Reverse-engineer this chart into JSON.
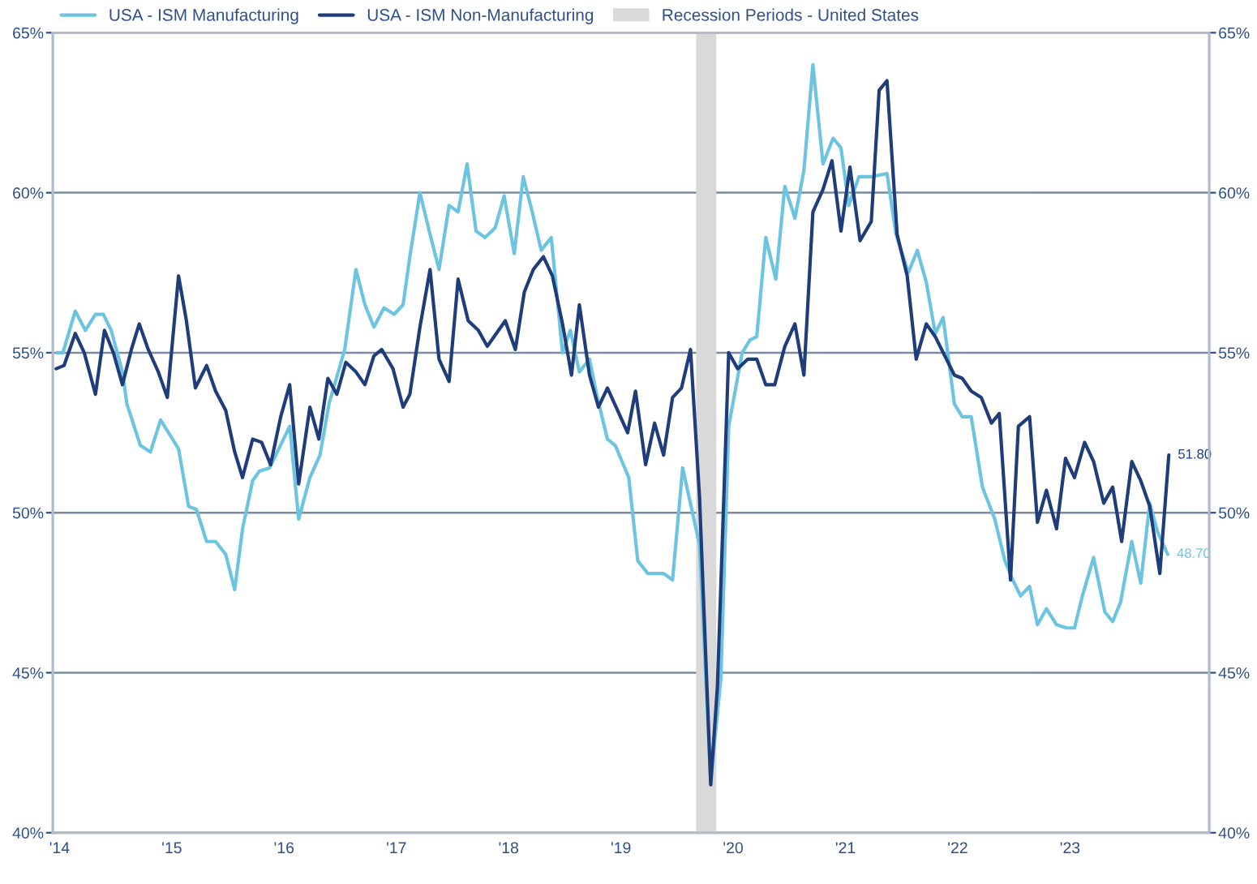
{
  "chart_data": {
    "type": "line",
    "xlim": [
      2013.94,
      2024.24
    ],
    "xticks": [
      {
        "value": 2014,
        "label": "'14"
      },
      {
        "value": 2015,
        "label": "'15"
      },
      {
        "value": 2016,
        "label": "'16"
      },
      {
        "value": 2017,
        "label": "'17"
      },
      {
        "value": 2018,
        "label": "'18"
      },
      {
        "value": 2019,
        "label": "'19"
      },
      {
        "value": 2020,
        "label": "'20"
      },
      {
        "value": 2021,
        "label": "'21"
      },
      {
        "value": 2022,
        "label": "'22"
      },
      {
        "value": 2023,
        "label": "'23"
      }
    ],
    "ylim": [
      40,
      65
    ],
    "yticks": [
      {
        "value": 40,
        "label": "40%"
      },
      {
        "value": 45,
        "label": "45%"
      },
      {
        "value": 50,
        "label": "50%"
      },
      {
        "value": 55,
        "label": "55%"
      },
      {
        "value": 60,
        "label": "60%"
      },
      {
        "value": 65,
        "label": "65%"
      }
    ],
    "y2lim": [
      40,
      65
    ],
    "y2ticks": [
      {
        "value": 40,
        "label": "40%"
      },
      {
        "value": 45,
        "label": "45%"
      },
      {
        "value": 50,
        "label": "50%"
      },
      {
        "value": 55,
        "label": "55%"
      },
      {
        "value": 60,
        "label": "60%"
      },
      {
        "value": 65,
        "label": "65%"
      }
    ],
    "grid": "y",
    "legend": "top",
    "line_style": "solid",
    "series": [
      {
        "name": "USA - ISM Manufacturing",
        "color": "#6cc4e0",
        "x": [
          2013.98,
          2014.03,
          2014.14,
          2014.23,
          2014.32,
          2014.39,
          2014.46,
          2014.56,
          2014.6,
          2014.72,
          2014.81,
          2014.9,
          2015.06,
          2015.15,
          2015.22,
          2015.31,
          2015.39,
          2015.48,
          2015.56,
          2015.63,
          2015.72,
          2015.78,
          2015.87,
          2015.94,
          2016.05,
          2016.13,
          2016.23,
          2016.32,
          2016.4,
          2016.54,
          2016.64,
          2016.72,
          2016.8,
          2016.89,
          2016.98,
          2017.06,
          2017.12,
          2017.21,
          2017.3,
          2017.38,
          2017.47,
          2017.55,
          2017.63,
          2017.71,
          2017.79,
          2017.88,
          2017.96,
          2018.05,
          2018.13,
          2018.21,
          2018.29,
          2018.38,
          2018.48,
          2018.55,
          2018.63,
          2018.72,
          2018.79,
          2018.88,
          2018.95,
          2019.07,
          2019.15,
          2019.24,
          2019.38,
          2019.46,
          2019.55,
          2019.7,
          2019.8,
          2019.89,
          2019.96,
          2020.08,
          2020.15,
          2020.21,
          2020.29,
          2020.38,
          2020.46,
          2020.55,
          2020.63,
          2020.71,
          2020.8,
          2020.89,
          2020.96,
          2021.03,
          2021.12,
          2021.23,
          2021.37,
          2021.45,
          2021.56,
          2021.64,
          2021.72,
          2021.8,
          2021.87,
          2021.97,
          2022.04,
          2022.12,
          2022.22,
          2022.33,
          2022.42,
          2022.49,
          2022.56,
          2022.64,
          2022.71,
          2022.79,
          2022.88,
          2022.97,
          2023.04,
          2023.11,
          2023.21,
          2023.31,
          2023.38,
          2023.45,
          2023.55,
          2023.63,
          2023.71,
          2023.78,
          2023.87
        ],
        "values": [
          55.0,
          55.0,
          56.3,
          55.7,
          56.2,
          56.2,
          55.7,
          54.4,
          53.4,
          52.1,
          51.9,
          52.9,
          52.0,
          50.2,
          50.1,
          49.1,
          49.1,
          48.7,
          47.6,
          49.5,
          51.0,
          51.3,
          51.4,
          51.9,
          52.7,
          49.8,
          51.1,
          51.8,
          53.4,
          55.1,
          57.6,
          56.5,
          55.8,
          56.4,
          56.2,
          56.5,
          58.0,
          60.0,
          58.7,
          57.6,
          59.6,
          59.4,
          60.9,
          58.8,
          58.6,
          58.9,
          59.9,
          58.1,
          60.5,
          59.4,
          58.2,
          58.6,
          55.0,
          55.7,
          54.4,
          54.8,
          53.6,
          52.3,
          52.1,
          51.1,
          48.5,
          48.1,
          48.1,
          47.9,
          51.4,
          49.0,
          41.6,
          44.8,
          52.7,
          55.0,
          55.4,
          55.5,
          58.6,
          57.3,
          60.2,
          59.2,
          60.7,
          64.0,
          60.9,
          61.7,
          61.4,
          59.6,
          60.5,
          60.5,
          60.6,
          58.7,
          57.5,
          58.2,
          57.2,
          55.6,
          56.1,
          53.4,
          53.0,
          53.0,
          50.8,
          49.8,
          48.5,
          47.9,
          47.4,
          47.7,
          46.5,
          47.0,
          46.5,
          46.4,
          46.4,
          47.4,
          48.6,
          46.9,
          46.6,
          47.2,
          49.1,
          47.8,
          50.3,
          49.4,
          48.7
        ]
      },
      {
        "name": "USA - ISM Non-Manufacturing",
        "color": "#1f3d7a",
        "x": [
          2013.97,
          2014.04,
          2014.14,
          2014.22,
          2014.32,
          2014.4,
          2014.48,
          2014.56,
          2014.64,
          2014.71,
          2014.79,
          2014.88,
          2014.96,
          2015.06,
          2015.13,
          2015.21,
          2015.31,
          2015.39,
          2015.48,
          2015.56,
          2015.63,
          2015.72,
          2015.8,
          2015.88,
          2015.97,
          2016.05,
          2016.13,
          2016.23,
          2016.31,
          2016.39,
          2016.47,
          2016.55,
          2016.64,
          2016.72,
          2016.8,
          2016.87,
          2016.97,
          2017.06,
          2017.12,
          2017.21,
          2017.3,
          2017.38,
          2017.47,
          2017.55,
          2017.64,
          2017.73,
          2017.81,
          2017.89,
          2017.97,
          2018.06,
          2018.14,
          2018.22,
          2018.31,
          2018.39,
          2018.48,
          2018.56,
          2018.63,
          2018.72,
          2018.8,
          2018.88,
          2018.97,
          2019.06,
          2019.13,
          2019.22,
          2019.3,
          2019.38,
          2019.46,
          2019.54,
          2019.62,
          2019.7,
          2019.8,
          2019.86,
          2019.96,
          2020.04,
          2020.13,
          2020.21,
          2020.29,
          2020.37,
          2020.46,
          2020.55,
          2020.63,
          2020.71,
          2020.8,
          2020.88,
          2020.96,
          2021.04,
          2021.13,
          2021.23,
          2021.3,
          2021.37,
          2021.46,
          2021.55,
          2021.63,
          2021.72,
          2021.8,
          2021.97,
          2022.04,
          2022.12,
          2022.21,
          2022.3,
          2022.37,
          2022.47,
          2022.54,
          2022.64,
          2022.71,
          2022.79,
          2022.88,
          2022.96,
          2023.04,
          2023.13,
          2023.21,
          2023.3,
          2023.38,
          2023.46,
          2023.55,
          2023.63,
          2023.71,
          2023.8,
          2023.88
        ],
        "values": [
          54.5,
          54.6,
          55.6,
          55.0,
          53.7,
          55.7,
          55.0,
          54.0,
          55.1,
          55.9,
          55.1,
          54.4,
          53.6,
          57.4,
          56.0,
          53.9,
          54.6,
          53.8,
          53.2,
          51.9,
          51.1,
          52.3,
          52.2,
          51.5,
          53.0,
          54.0,
          50.9,
          53.3,
          52.3,
          54.2,
          53.7,
          54.7,
          54.4,
          54.0,
          54.9,
          55.1,
          54.5,
          53.3,
          53.7,
          55.8,
          57.6,
          54.8,
          54.1,
          57.3,
          56.0,
          55.7,
          55.2,
          55.6,
          56.0,
          55.1,
          56.9,
          57.6,
          58.0,
          57.4,
          55.9,
          54.3,
          56.5,
          54.3,
          53.3,
          53.9,
          53.2,
          52.5,
          53.8,
          51.5,
          52.8,
          51.8,
          53.6,
          53.9,
          55.1,
          50.5,
          41.5,
          44.6,
          55.0,
          54.5,
          54.8,
          54.8,
          54.0,
          54.0,
          55.2,
          55.9,
          54.3,
          59.4,
          60.1,
          61.0,
          58.8,
          60.8,
          58.5,
          59.1,
          63.2,
          63.5,
          58.7,
          57.4,
          54.8,
          55.9,
          55.5,
          54.3,
          54.2,
          53.8,
          53.6,
          52.8,
          53.1,
          47.9,
          52.7,
          53.0,
          49.7,
          50.7,
          49.5,
          51.7,
          51.1,
          52.2,
          51.6,
          50.3,
          50.8,
          49.1,
          51.6,
          51.0,
          50.2,
          48.1,
          51.8
        ]
      }
    ],
    "bands": [
      {
        "axis": "x",
        "from": 2019.67,
        "to": 2019.85,
        "label": "Recession Periods - United States",
        "color": "#d9d9d9"
      }
    ],
    "annotations": [
      {
        "text": "51.80",
        "x": 2023.88,
        "y": 51.8
      },
      {
        "text": "48.70",
        "x": 2023.87,
        "y": 48.7
      }
    ]
  }
}
